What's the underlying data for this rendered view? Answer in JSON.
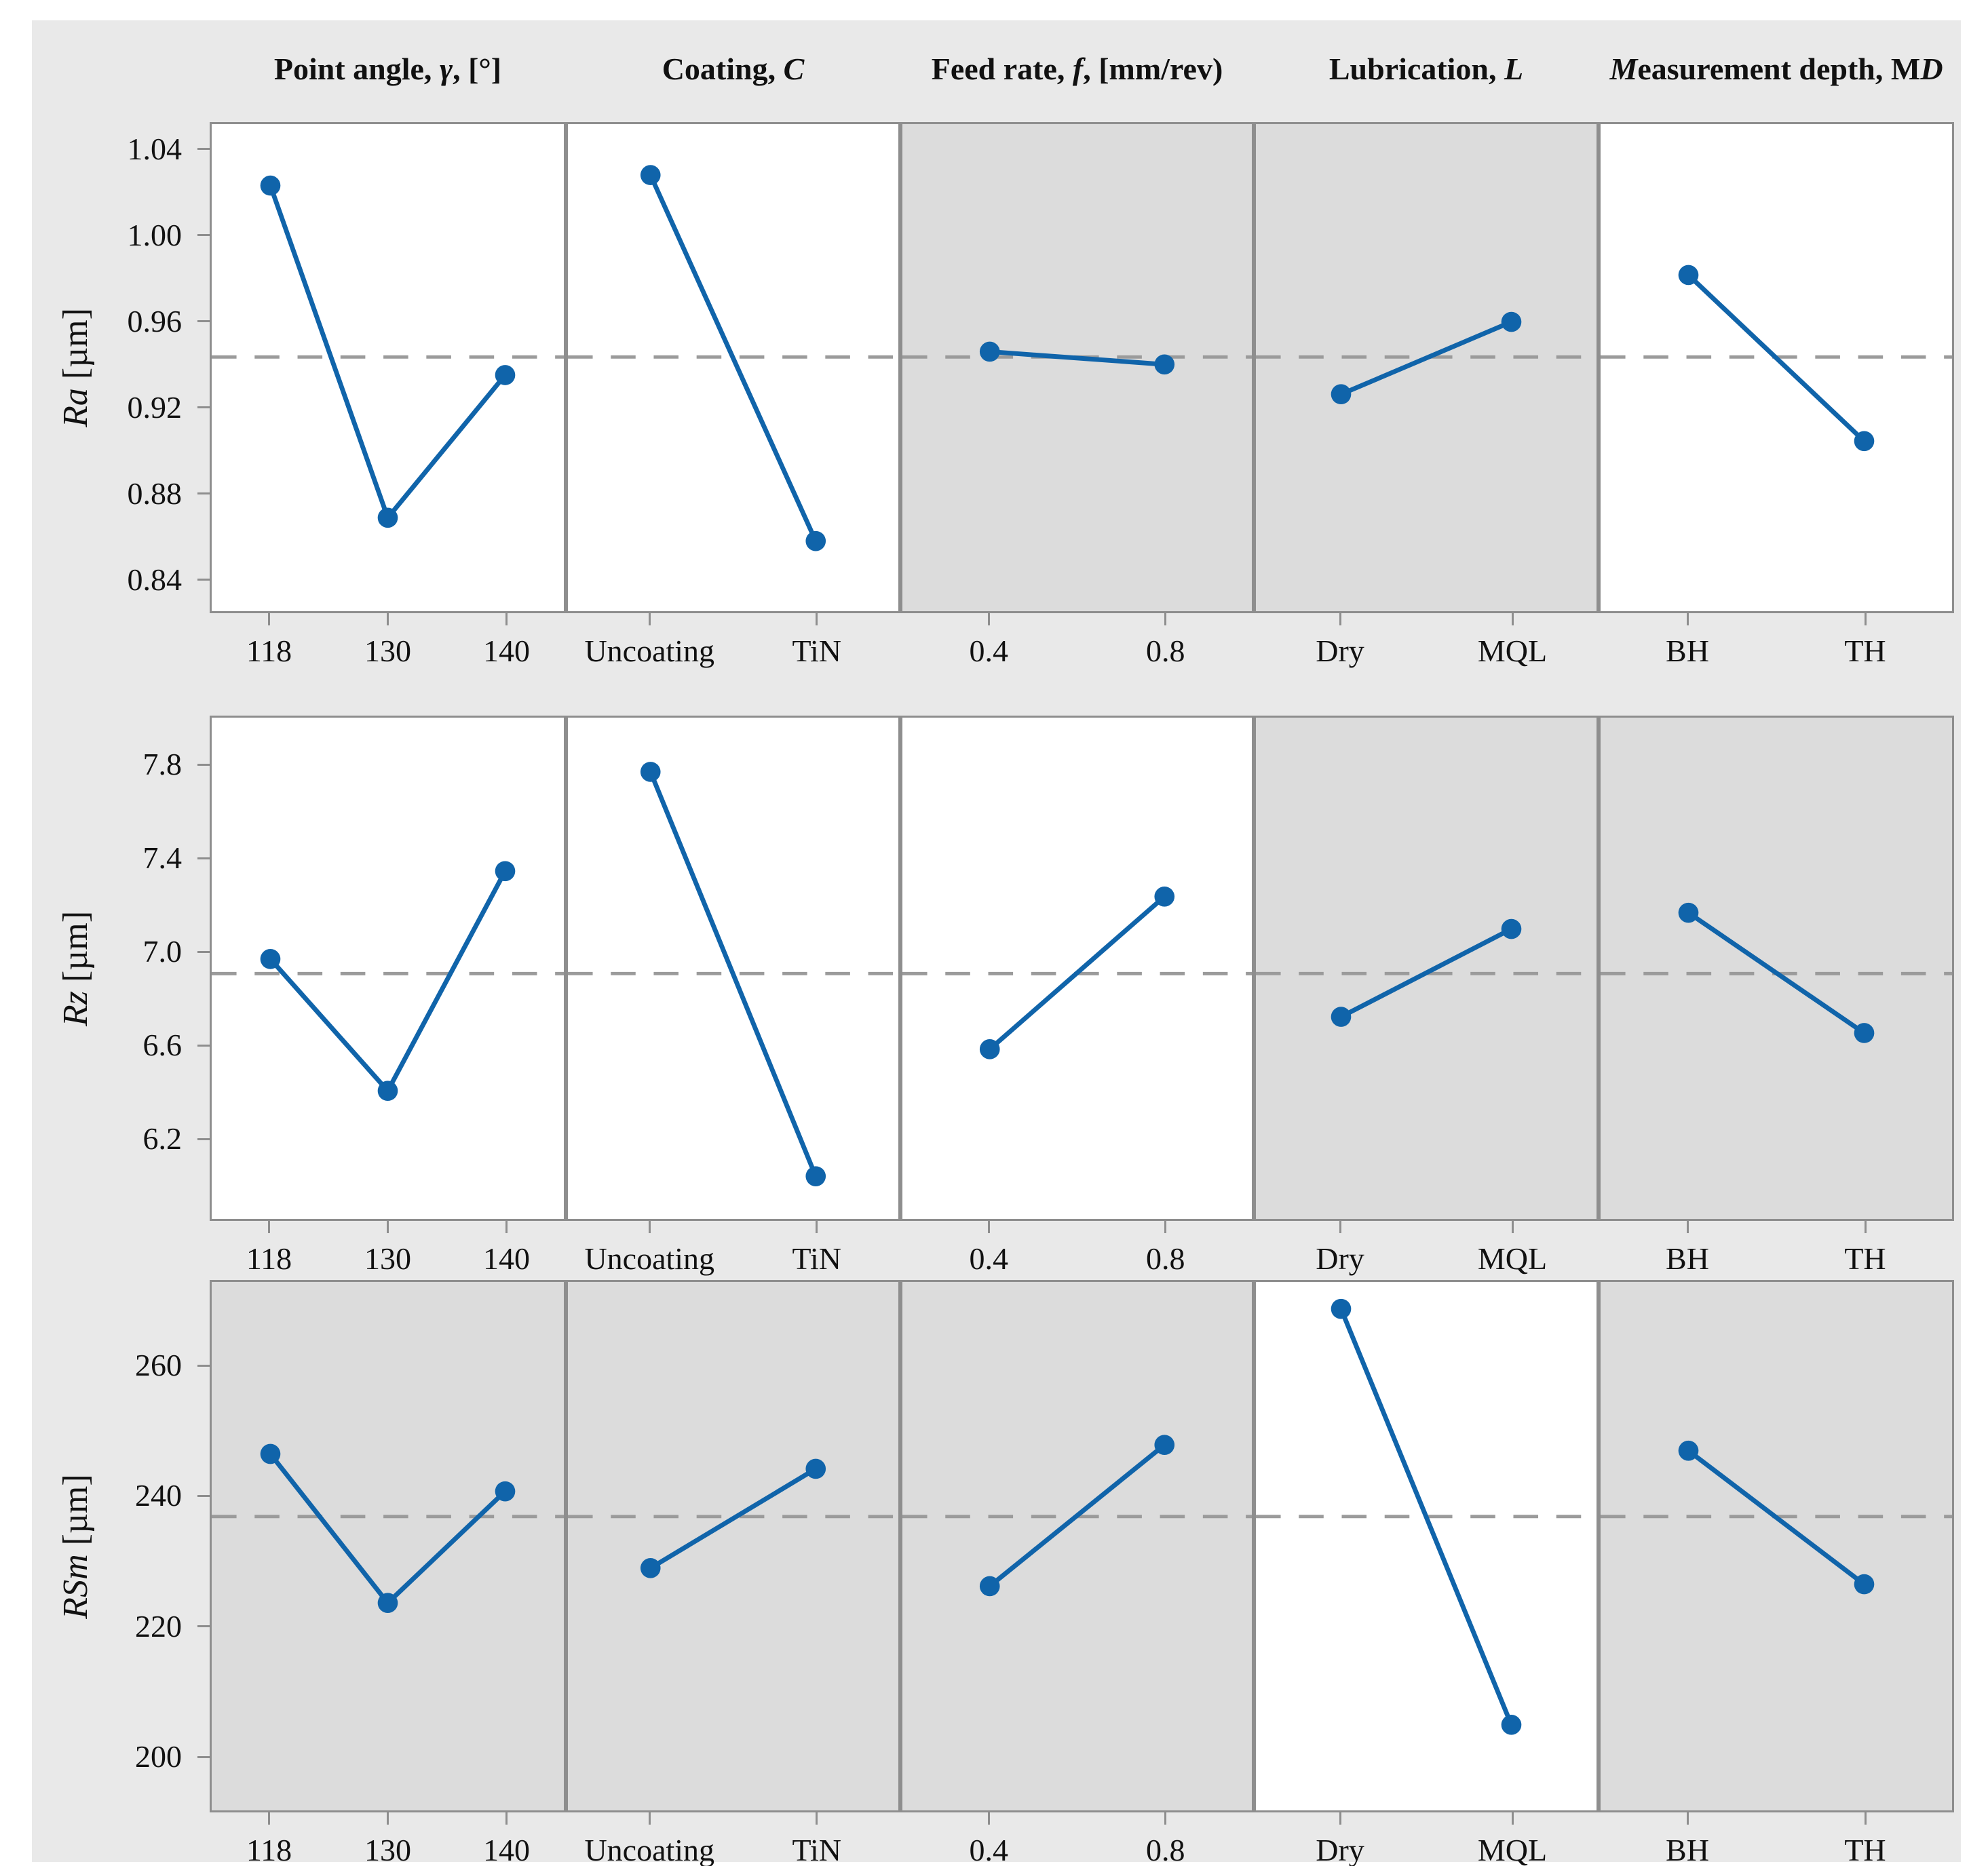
{
  "figure": {
    "type": "main-effects-plot",
    "colors": {
      "canvas_bg": "#e9e9e9",
      "panel_white": "#ffffff",
      "panel_shaded": "#dcdcdc",
      "panel_border": "#8e8e8e",
      "line_blue": "#1064aa",
      "mean_dash_gray": "#9b9b9b",
      "text": "#111111"
    },
    "columns": [
      {
        "header": "Point angle, γ, [°]",
        "header_marked": "Point angle, *γ*, [°]"
      },
      {
        "header": "Coating, C",
        "header_marked": "Coating, *C*"
      },
      {
        "header": "Feed rate, f, [mm/rev)",
        "header_marked": "Feed rate, *f*, [mm/rev)"
      },
      {
        "header": "Lubrication, L",
        "header_marked": "Lubrication, *L*"
      },
      {
        "header": "Measurement depth, MD",
        "header_marked": "*M*easurement depth, M*D*"
      }
    ]
  },
  "chart_data": [
    {
      "type": "line",
      "name": "Ra",
      "ylabel": "Ra [µm]",
      "ylabel_marked": "*Ra* [µm]",
      "ylim": [
        0.8245,
        1.0525
      ],
      "ytick_values": [
        1.04,
        1.0,
        0.96,
        0.92,
        0.88,
        0.84
      ],
      "ytick_labels": [
        "1.04",
        "1.00",
        "0.96",
        "0.92",
        "0.88",
        "0.84"
      ],
      "mean": 0.9435,
      "legend": "dashed line = overall mean",
      "panels": [
        {
          "factor": "Point angle, γ, [°]",
          "categories": [
            "118",
            "130",
            "140"
          ],
          "values": [
            1.024,
            0.868,
            0.935
          ],
          "shaded": false
        },
        {
          "factor": "Coating, C",
          "categories": [
            "Uncoating",
            "TiN"
          ],
          "values": [
            1.029,
            0.857
          ],
          "shaded": false
        },
        {
          "factor": "Feed rate, f, [mm/rev)",
          "categories": [
            "0.4",
            "0.8"
          ],
          "values": [
            0.946,
            0.94
          ],
          "shaded": true
        },
        {
          "factor": "Lubrication, L",
          "categories": [
            "Dry",
            "MQL"
          ],
          "values": [
            0.926,
            0.96
          ],
          "shaded": true
        },
        {
          "factor": "Measurement depth, MD",
          "categories": [
            "BH",
            "TH"
          ],
          "values": [
            0.982,
            0.904
          ],
          "shaded": false
        }
      ]
    },
    {
      "type": "line",
      "name": "Rz",
      "ylabel": "Rz [µm]",
      "ylabel_marked": "*Rz* [µm]",
      "ylim": [
        5.85,
        8.01
      ],
      "ytick_values": [
        7.8,
        7.4,
        7.0,
        6.6,
        6.2
      ],
      "ytick_labels": [
        "7.8",
        "7.4",
        "7.0",
        "6.6",
        "6.2"
      ],
      "mean": 6.907,
      "legend": "dashed line = overall mean",
      "panels": [
        {
          "factor": "Point angle, γ, [°]",
          "categories": [
            "118",
            "130",
            "140"
          ],
          "values": [
            6.97,
            6.4,
            7.35
          ],
          "shaded": false
        },
        {
          "factor": "Coating, C",
          "categories": [
            "Uncoating",
            "TiN"
          ],
          "values": [
            7.78,
            6.03
          ],
          "shaded": false
        },
        {
          "factor": "Feed rate, f, [mm/rev)",
          "categories": [
            "0.4",
            "0.8"
          ],
          "values": [
            6.58,
            7.24
          ],
          "shaded": false
        },
        {
          "factor": "Lubrication, L",
          "categories": [
            "Dry",
            "MQL"
          ],
          "values": [
            6.72,
            7.1
          ],
          "shaded": true
        },
        {
          "factor": "Measurement depth, MD",
          "categories": [
            "BH",
            "TH"
          ],
          "values": [
            7.17,
            6.65
          ],
          "shaded": true
        }
      ]
    },
    {
      "type": "line",
      "name": "RSm",
      "ylabel": "RSm [µm]",
      "ylabel_marked": "*RSm* [µm]",
      "ylim": [
        191.5,
        273.1
      ],
      "ytick_values": [
        260,
        240,
        220,
        200
      ],
      "ytick_labels": [
        "260",
        "240",
        "220",
        "200"
      ],
      "mean": 236.9,
      "legend": "dashed line = overall mean",
      "panels": [
        {
          "factor": "Point angle, γ, [°]",
          "categories": [
            "118",
            "130",
            "140"
          ],
          "values": [
            246.6,
            223.5,
            240.8
          ],
          "shaded": true
        },
        {
          "factor": "Coating, C",
          "categories": [
            "Uncoating",
            "TiN"
          ],
          "values": [
            228.9,
            244.3
          ],
          "shaded": true
        },
        {
          "factor": "Feed rate, f, [mm/rev)",
          "categories": [
            "0.4",
            "0.8"
          ],
          "values": [
            226.1,
            248.0
          ],
          "shaded": true
        },
        {
          "factor": "Lubrication, L",
          "categories": [
            "Dry",
            "MQL"
          ],
          "values": [
            269.1,
            204.6
          ],
          "shaded": false
        },
        {
          "factor": "Measurement depth, MD",
          "categories": [
            "BH",
            "TH"
          ],
          "values": [
            247.1,
            226.4
          ],
          "shaded": true
        }
      ]
    }
  ]
}
